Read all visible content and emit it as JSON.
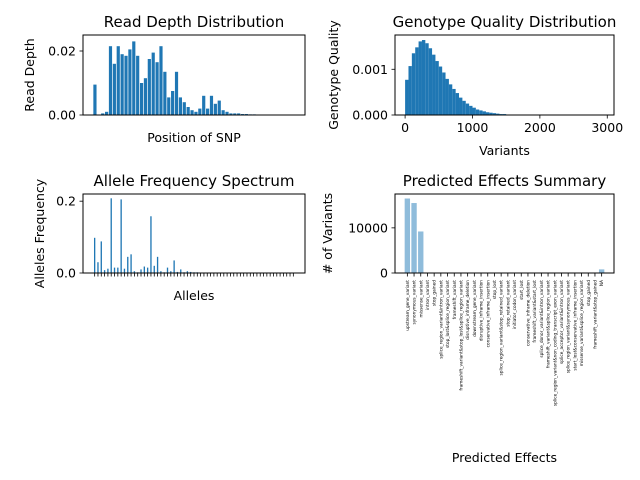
{
  "chart_data": [
    {
      "type": "bar",
      "title": "Read Depth Distribution",
      "xlabel": "Position of SNP",
      "ylabel": "Read Depth",
      "x_ticks_shown": false,
      "ylim": [
        0,
        0.025
      ],
      "yticks": [
        0.0,
        0.02
      ],
      "ytick_labels": [
        "0.00",
        "0.02"
      ],
      "color": "#1f77b4",
      "values": [
        0.0095,
        0,
        0.0005,
        0.001,
        0.0215,
        0.016,
        0.0215,
        0.019,
        0.0185,
        0.0205,
        0.023,
        0.0185,
        0.01,
        0.0115,
        0.0175,
        0.0195,
        0.0165,
        0.0215,
        0.0135,
        0.0055,
        0.0075,
        0.0135,
        0.0055,
        0.004,
        0.0025,
        0.0015,
        0.001,
        0.002,
        0.006,
        0.002,
        0.006,
        0.0035,
        0.0045,
        0.0015,
        0.001,
        0.0005,
        0.0005,
        0.0005,
        0.0003,
        0.0003,
        0.0002,
        0.0002,
        0.0001,
        0.0001,
        0.0001,
        0.0001
      ]
    },
    {
      "type": "bar",
      "title": "Genotype Quality Distribution",
      "xlabel": "Variants",
      "ylabel": "Genotype Quality",
      "xlim": [
        -150,
        3100
      ],
      "xticks": [
        0,
        1000,
        2000,
        3000
      ],
      "ylim": [
        0,
        0.00175
      ],
      "yticks": [
        0.0,
        0.001
      ],
      "ytick_labels": [
        "0.000",
        "0.001"
      ],
      "bin_width": 50,
      "color": "#1f77b4",
      "bin_starts": [
        0,
        50,
        100,
        150,
        200,
        250,
        300,
        350,
        400,
        450,
        500,
        550,
        600,
        650,
        700,
        750,
        800,
        850,
        900,
        950,
        1000,
        1050,
        1100,
        1150,
        1200,
        1250,
        1300,
        1350,
        1400,
        1450,
        1500,
        1550
      ],
      "values": [
        0.00077,
        0.00107,
        0.00135,
        0.00148,
        0.00161,
        0.00164,
        0.00157,
        0.00146,
        0.00132,
        0.00118,
        0.00106,
        0.00093,
        0.00079,
        0.00067,
        0.00057,
        0.00048,
        0.00038,
        0.00031,
        0.00025,
        0.0002,
        0.00016,
        0.00012,
        0.0001,
        8e-05,
        6e-05,
        5e-05,
        4e-05,
        3e-05,
        2e-05,
        2e-05,
        1e-05,
        1e-05
      ]
    },
    {
      "type": "bar",
      "title": "Allele Frequency Spectrum",
      "xlabel": "Alleles",
      "ylabel": "Alleles Frequency",
      "x_tick_labels_shown": false,
      "ylim": [
        0,
        0.22
      ],
      "yticks": [
        0.0,
        0.2
      ],
      "ytick_labels": [
        "0.0",
        "0.2"
      ],
      "color": "#1f77b4",
      "values": [
        0.098,
        0.03,
        0.088,
        0.008,
        0.012,
        0.208,
        0.015,
        0.015,
        0.205,
        0.012,
        0.045,
        0.052,
        0.005,
        0.002,
        0.01,
        0.018,
        0.015,
        0.158,
        0.02,
        0.045,
        0.005,
        0.002,
        0.015,
        0.005,
        0.035,
        0.003,
        0.01,
        0.002,
        0.005,
        0.003,
        0.002,
        0.002,
        0.001,
        0.001,
        0.001,
        0.001,
        0.001,
        0.001,
        0.001,
        0.001,
        0.001,
        0.001,
        0.001,
        0.001,
        0.001,
        0.001,
        0.001,
        0.001,
        0.001,
        0.001,
        0.001,
        0.001,
        0.001,
        0.001,
        0.001,
        0.001,
        0.001,
        0.001,
        0.001,
        0.001,
        0.001
      ]
    },
    {
      "type": "bar",
      "title": "Predicted Effects Summary",
      "xlabel": "Predicted Effects",
      "ylabel": "# of Variants",
      "ylim": [
        0,
        17500
      ],
      "yticks": [
        0,
        10000
      ],
      "ytick_labels": [
        "0",
        "10000"
      ],
      "color": "#8fbcdb",
      "categories": [
        "upstream_gene_variant",
        "synonymous_variant",
        "missense_variant",
        "intron_variant",
        "stop_gained",
        "splice_region_variant&intron_variant",
        "stop_lost&splice_region_variant",
        "frameshift_variant",
        "frameshift_variant&stop_lost&splice_region_variant",
        "disruptive_inframe_deletion",
        "downstream_gene_variant",
        "disruptive_inframe_insertion",
        "conservative_inframe_insertion",
        "stop_lost",
        "splice_region_variant&stop_retained_variant",
        "stop_retained_variant",
        "initiator_codon_variant",
        "start_lost",
        "conservative_inframe_deletion",
        "frameshift_variant&start_lost",
        "splice_donor_variant&intron_variant",
        "frameshift_variant&splice_region_variant",
        "splice_region_variant&non_coding_transcript_exon_variant",
        "splice_acceptor_variant&intron_variant",
        "splice_region_variant&synonymous_variant",
        "start_lost&conservative_inframe_insertion",
        "missense_variant&splice_region_variant",
        "stop_gained",
        "frameshift_variant&stop_gained",
        "NA"
      ],
      "values": [
        16500,
        15500,
        9200,
        60,
        30,
        20,
        15,
        15,
        15,
        10,
        80,
        10,
        10,
        8,
        8,
        8,
        5,
        5,
        5,
        5,
        5,
        5,
        5,
        5,
        5,
        5,
        5,
        5,
        5,
        800
      ]
    }
  ]
}
